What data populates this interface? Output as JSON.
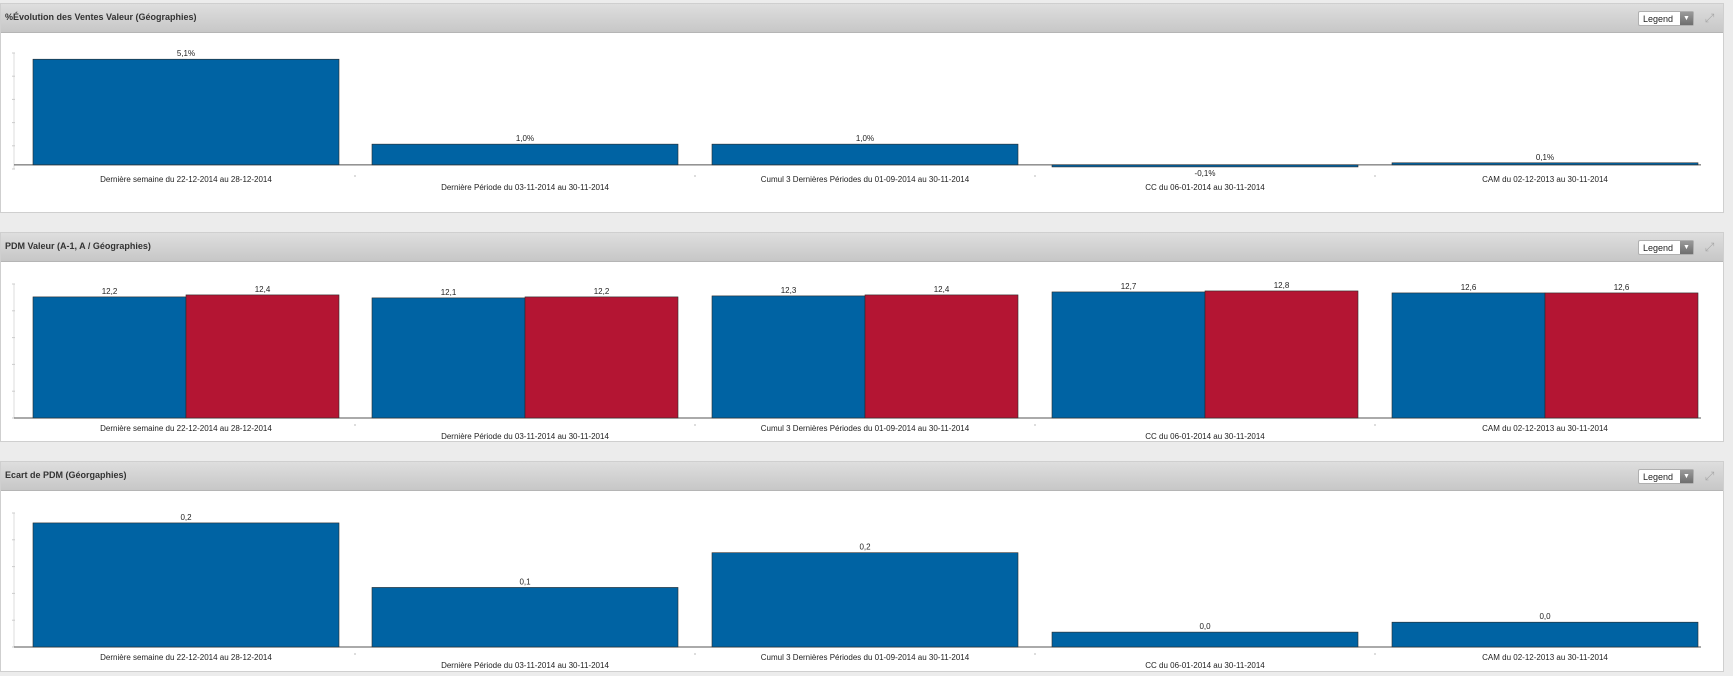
{
  "panels": [
    {
      "title": "%Évolution des Ventes Valeur (Géographies)",
      "legend_label": "Legend",
      "expand_icon": "expand-icon"
    },
    {
      "title": "PDM Valeur (A-1, A / Géographies)",
      "legend_label": "Legend",
      "expand_icon": "expand-icon"
    },
    {
      "title": "Ecart de PDM (Géorgaphies)",
      "legend_label": "Legend",
      "expand_icon": "expand-icon"
    }
  ],
  "colors": {
    "series_a": "#0063a3",
    "series_b": "#b41533",
    "axis": "#555555",
    "label": "#222222"
  },
  "chart_data": [
    {
      "type": "bar",
      "categories": [
        "Dernière semaine du 22-12-2014 au 28-12-2014",
        "Dernière Période du 03-11-2014 au 30-11-2014",
        "Cumul 3 Dernières Périodes du 01-09-2014 au 30-11-2014",
        "CC du 06-01-2014 au 30-11-2014",
        "CAM du 02-12-2013 au 30-11-2014"
      ],
      "series": [
        {
          "values": [
            5.1,
            1.0,
            1.0,
            -0.1,
            0.1
          ],
          "labels": [
            "5,1%",
            "1,0%",
            "1,0%",
            "-0,1%",
            "0,1%"
          ]
        }
      ],
      "ylim": [
        -0.2,
        5.4
      ],
      "grid": false
    },
    {
      "type": "bar",
      "categories": [
        "Dernière semaine du 22-12-2014 au 28-12-2014",
        "Dernière Période du 03-11-2014 au 30-11-2014",
        "Cumul 3 Dernières Périodes du 01-09-2014 au 30-11-2014",
        "CC du 06-01-2014 au 30-11-2014",
        "CAM du 02-12-2013 au 30-11-2014"
      ],
      "series": [
        {
          "values": [
            12.2,
            12.1,
            12.3,
            12.7,
            12.6
          ],
          "labels": [
            "12,2",
            "12,1",
            "12,3",
            "12,7",
            "12,6"
          ]
        },
        {
          "values": [
            12.4,
            12.2,
            12.4,
            12.8,
            12.6
          ],
          "labels": [
            "12,4",
            "12,2",
            "12,4",
            "12,8",
            "12,6"
          ]
        }
      ],
      "ylim": [
        0,
        13.5
      ],
      "grid": false
    },
    {
      "type": "bar",
      "categories": [
        "Dernière semaine du 22-12-2014 au 28-12-2014",
        "Dernière Période du 03-11-2014 au 30-11-2014",
        "Cumul 3 Dernières Périodes du 01-09-2014 au 30-11-2014",
        "CC du 06-01-2014 au 30-11-2014",
        "CAM du 02-12-2013 au 30-11-2014"
      ],
      "series": [
        {
          "values": [
            0.25,
            0.12,
            0.19,
            0.03,
            0.05
          ],
          "labels": [
            "0,2",
            "0,1",
            "0,2",
            "0,0",
            "0,0"
          ]
        }
      ],
      "ylim": [
        0,
        0.27
      ],
      "grid": false
    }
  ]
}
